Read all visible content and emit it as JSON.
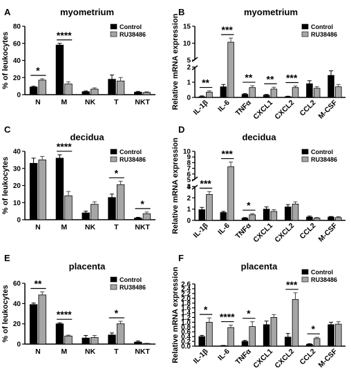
{
  "colors": {
    "control": "#000000",
    "treated": "#a6a6a6"
  },
  "chart_data": [
    {
      "letter": "A",
      "title": "myometrium",
      "type": "bar",
      "ylabel": "% of leukocytes",
      "ylim": [
        0,
        80
      ],
      "yticks": [
        "0",
        "20",
        "40",
        "60",
        "80"
      ],
      "categories": [
        "N",
        "M",
        "NK",
        "T",
        "NKT"
      ],
      "series": [
        {
          "name": "Control",
          "values": [
            9,
            58,
            3.5,
            18,
            3
          ]
        },
        {
          "name": "RU38486",
          "values": [
            17,
            12.5,
            6.5,
            16,
            2.5
          ]
        }
      ],
      "errors": [
        [
          0.8,
          2,
          0.8,
          5,
          0.8
        ],
        [
          1.5,
          2.5,
          1.5,
          4,
          0.8
        ]
      ],
      "significance": [
        {
          "category": 0,
          "label": "*"
        },
        {
          "category": 1,
          "label": "****"
        }
      ]
    },
    {
      "letter": "B",
      "title": "myometrium",
      "type": "bar",
      "ylabel": "Relative mRNA expression",
      "ylim": [
        0,
        15
      ],
      "yticks": [
        "0",
        "1",
        "2",
        "5",
        "10",
        "15"
      ],
      "broken_axis": [
        2,
        5
      ],
      "categories": [
        "IL-1β",
        "IL-6",
        "TNFα",
        "CXCL1",
        "CXCL2",
        "CCL2",
        "M-CSF"
      ],
      "series": [
        {
          "name": "Control",
          "values": [
            0.05,
            0.7,
            0.2,
            0.15,
            0.05,
            0.9,
            1.45
          ]
        },
        {
          "name": "RU38486",
          "values": [
            0.35,
            10.3,
            0.65,
            0.55,
            0.65,
            0.6,
            0.7
          ]
        }
      ],
      "errors": [
        [
          0.05,
          0.15,
          0.05,
          0.05,
          0.03,
          0.2,
          0.3
        ],
        [
          0.08,
          1.2,
          0.12,
          0.12,
          0.1,
          0.1,
          0.15
        ]
      ],
      "significance": [
        {
          "category": 0,
          "label": "**"
        },
        {
          "category": 1,
          "label": "***"
        },
        {
          "category": 2,
          "label": "**"
        },
        {
          "category": 3,
          "label": "**"
        },
        {
          "category": 4,
          "label": "***"
        }
      ]
    },
    {
      "letter": "C",
      "title": "decidua",
      "type": "bar",
      "ylabel": "% of leukocytes",
      "ylim": [
        0,
        40
      ],
      "yticks": [
        "0",
        "10",
        "20",
        "30",
        "40"
      ],
      "categories": [
        "N",
        "M",
        "NK",
        "T",
        "NKT"
      ],
      "series": [
        {
          "name": "Control",
          "values": [
            33,
            36,
            4,
            13,
            1
          ]
        },
        {
          "name": "RU38486",
          "values": [
            35,
            14,
            9,
            20.5,
            3.5
          ]
        }
      ],
      "errors": [
        [
          3,
          2,
          1,
          2,
          0.4
        ],
        [
          2,
          2.5,
          1.5,
          2,
          1
        ]
      ],
      "significance": [
        {
          "category": 1,
          "label": "****"
        },
        {
          "category": 3,
          "label": "*"
        },
        {
          "category": 4,
          "label": "*"
        }
      ]
    },
    {
      "letter": "D",
      "title": "decidua",
      "type": "bar",
      "ylabel": "Relative mRNA expression",
      "ylim": [
        0,
        10
      ],
      "yticks": [
        "0",
        "1",
        "2",
        "3",
        "4",
        "5",
        "6",
        "7",
        "8",
        "9",
        "10"
      ],
      "broken_axis": [
        3,
        5
      ],
      "categories": [
        "IL-1β",
        "IL-6",
        "TNFα",
        "CXCL1",
        "CXCL2",
        "CCL2",
        "M-CSF"
      ],
      "series": [
        {
          "name": "Control",
          "values": [
            0.95,
            0.7,
            0.2,
            1.0,
            1.2,
            0.3,
            0.3
          ]
        },
        {
          "name": "RU38486",
          "values": [
            2.3,
            7.3,
            0.5,
            0.8,
            1.45,
            0.2,
            0.25
          ]
        }
      ],
      "errors": [
        [
          0.2,
          0.1,
          0.05,
          0.2,
          0.2,
          0.08,
          0.05
        ],
        [
          0.25,
          0.8,
          0.1,
          0.15,
          0.2,
          0.05,
          0.08
        ]
      ],
      "significance": [
        {
          "category": 0,
          "label": "***"
        },
        {
          "category": 1,
          "label": "***"
        },
        {
          "category": 2,
          "label": "*"
        }
      ]
    },
    {
      "letter": "E",
      "title": "placenta",
      "type": "bar",
      "ylabel": "% of leukocytes",
      "ylim": [
        0,
        60
      ],
      "yticks": [
        "0",
        "20",
        "40",
        "60"
      ],
      "categories": [
        "N",
        "M",
        "NK",
        "T",
        "NKT"
      ],
      "series": [
        {
          "name": "Control",
          "values": [
            39,
            20,
            6,
            9,
            2
          ]
        },
        {
          "name": "RU38486",
          "values": [
            48.5,
            8,
            6.5,
            20,
            0.5
          ]
        }
      ],
      "errors": [
        [
          1.5,
          1,
          2.5,
          2,
          1
        ],
        [
          3,
          0.8,
          2,
          2.5,
          0.3
        ]
      ],
      "significance": [
        {
          "category": 0,
          "label": "**"
        },
        {
          "category": 1,
          "label": "****"
        },
        {
          "category": 3,
          "label": "*"
        }
      ]
    },
    {
      "letter": "F",
      "title": "placenta",
      "type": "bar",
      "ylabel": "Relative mRNA expression",
      "ylim": [
        0,
        2.6
      ],
      "yticks": [
        "0.0",
        "0.2",
        "0.4",
        "0.6",
        "0.8",
        "1.0",
        "1.2",
        "1.4",
        "1.6",
        "1.8",
        "2.0",
        "2.2",
        "2.4",
        "2.6"
      ],
      "categories": [
        "IL-1β",
        "IL-6",
        "TNFα",
        "CXCL1",
        "CXCL2",
        "CCL2",
        "M-CSF"
      ],
      "series": [
        {
          "name": "Control",
          "values": [
            0.4,
            0.02,
            0.2,
            0.9,
            0.38,
            0.08,
            0.9
          ]
        },
        {
          "name": "RU38486",
          "values": [
            1.0,
            0.78,
            0.82,
            1.2,
            1.95,
            0.32,
            0.92
          ]
        }
      ],
      "errors": [
        [
          0.05,
          0.01,
          0.04,
          0.15,
          0.15,
          0.02,
          0.1
        ],
        [
          0.18,
          0.1,
          0.2,
          0.12,
          0.28,
          0.05,
          0.1
        ]
      ],
      "significance": [
        {
          "category": 0,
          "label": "*"
        },
        {
          "category": 1,
          "label": "****"
        },
        {
          "category": 2,
          "label": "*"
        },
        {
          "category": 4,
          "label": "***"
        },
        {
          "category": 5,
          "label": "*"
        }
      ]
    }
  ]
}
